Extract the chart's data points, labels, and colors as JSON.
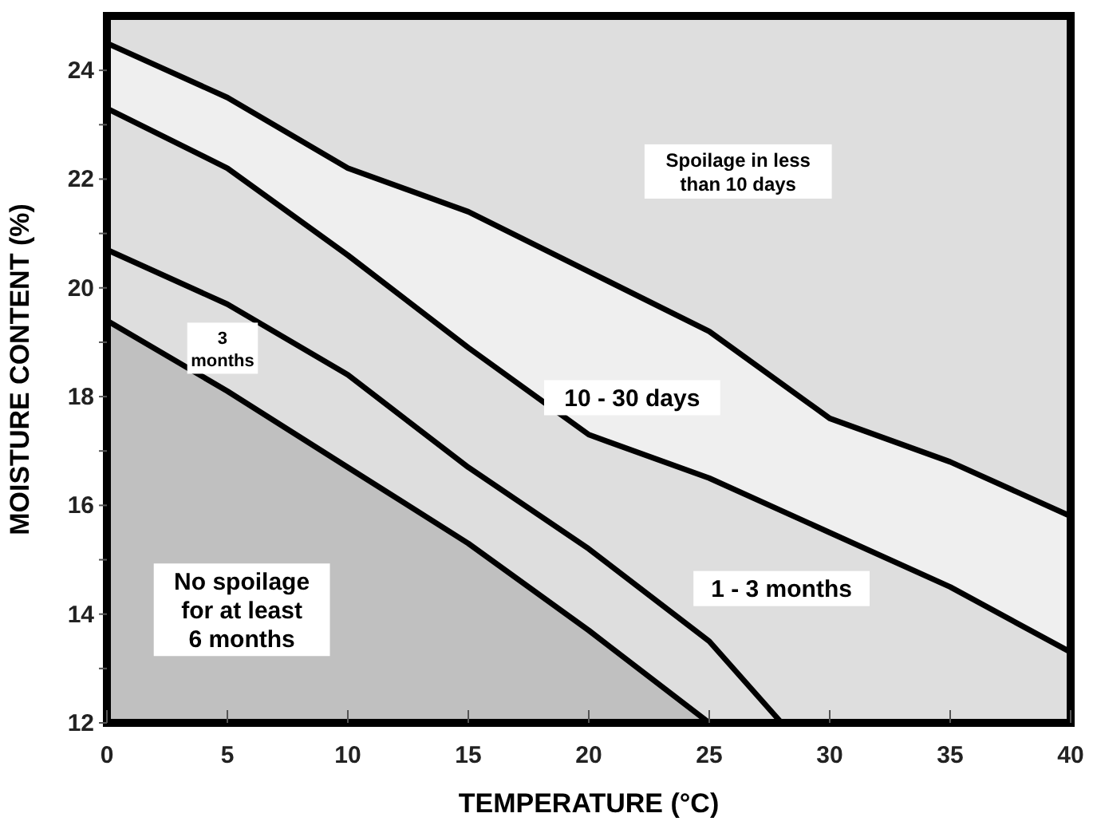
{
  "chart_data": {
    "type": "area",
    "xlabel": "TEMPERATURE (°C)",
    "ylabel": "MOISTURE CONTENT (%)",
    "x": [
      0,
      5,
      10,
      15,
      20,
      25,
      30,
      35,
      40
    ],
    "series": [
      {
        "color": "#efefef",
        "values": [
          24.5,
          23.5,
          22.2,
          21.4,
          20.3,
          19.2,
          17.6,
          16.8,
          15.8
        ]
      },
      {
        "color": "#dedede",
        "values": [
          23.3,
          22.2,
          20.6,
          18.9,
          17.3,
          16.5,
          15.5,
          14.5,
          13.3
        ]
      },
      {
        "type": "line",
        "color": "#000000",
        "x": [
          0,
          5,
          10,
          15,
          20,
          25,
          28
        ],
        "values": [
          20.7,
          19.7,
          18.4,
          16.7,
          15.2,
          13.5,
          12
        ]
      },
      {
        "color": "#c0c0c0",
        "x": [
          0,
          5,
          10,
          15,
          20,
          25
        ],
        "values": [
          19.4,
          18.1,
          16.7,
          15.3,
          13.7,
          12
        ]
      }
    ],
    "xlim": [
      0,
      40
    ],
    "xticks": [
      0,
      5,
      10,
      15,
      20,
      25,
      30,
      35,
      40
    ],
    "ylim": [
      12,
      25
    ],
    "yticks": [
      12,
      {
        "value": 13,
        "label": null
      },
      14,
      {
        "value": 15,
        "label": null
      },
      16,
      {
        "value": 17,
        "label": null
      },
      18,
      {
        "value": 19,
        "label": null
      },
      20,
      {
        "value": 21,
        "label": null
      },
      22,
      {
        "value": 23,
        "label": null
      },
      24
    ],
    "annotations": [
      "Spoilage in less\nthan 10 days",
      "10 - 30 days",
      "3\nmonths",
      "1 - 3 months",
      "No spoilage\nfor at least\n6 months"
    ]
  }
}
